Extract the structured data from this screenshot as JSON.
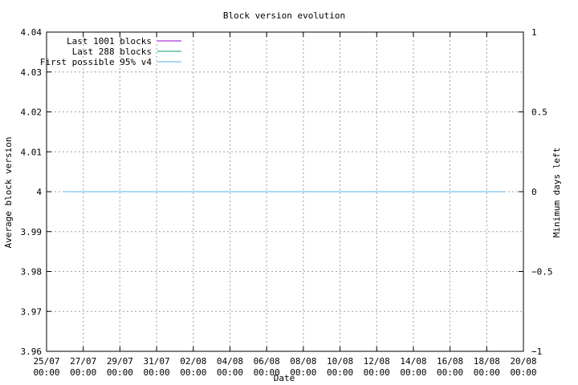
{
  "chart_data": {
    "type": "line",
    "title": "Block version evolution",
    "xlabel": "Date",
    "ylabel": "Average block version",
    "y2label": "Minimum days left",
    "xlim": [
      "25/07 00:00",
      "20/08 00:00"
    ],
    "ylim": [
      3.96,
      4.04
    ],
    "y2lim": [
      -1,
      1
    ],
    "grid": true,
    "legend": "top-left",
    "x_ticks": [
      {
        "day": 0,
        "line1": "25/07",
        "line2": "00:00"
      },
      {
        "day": 2,
        "line1": "27/07",
        "line2": "00:00"
      },
      {
        "day": 4,
        "line1": "29/07",
        "line2": "00:00"
      },
      {
        "day": 6,
        "line1": "31/07",
        "line2": "00:00"
      },
      {
        "day": 8,
        "line1": "02/08",
        "line2": "00:00"
      },
      {
        "day": 10,
        "line1": "04/08",
        "line2": "00:00"
      },
      {
        "day": 12,
        "line1": "06/08",
        "line2": "00:00"
      },
      {
        "day": 14,
        "line1": "08/08",
        "line2": "00:00"
      },
      {
        "day": 16,
        "line1": "10/08",
        "line2": "00:00"
      },
      {
        "day": 18,
        "line1": "12/08",
        "line2": "00:00"
      },
      {
        "day": 20,
        "line1": "14/08",
        "line2": "00:00"
      },
      {
        "day": 22,
        "line1": "16/08",
        "line2": "00:00"
      },
      {
        "day": 24,
        "line1": "18/08",
        "line2": "00:00"
      },
      {
        "day": 26,
        "line1": "20/08",
        "line2": "00:00"
      }
    ],
    "y_ticks": [
      {
        "value": 4.04,
        "label": "4.04"
      },
      {
        "value": 4.03,
        "label": "4.03"
      },
      {
        "value": 4.02,
        "label": "4.02"
      },
      {
        "value": 4.01,
        "label": "4.01"
      },
      {
        "value": 4.0,
        "label": "4"
      },
      {
        "value": 3.99,
        "label": "3.99"
      },
      {
        "value": 3.98,
        "label": "3.98"
      },
      {
        "value": 3.97,
        "label": "3.97"
      },
      {
        "value": 3.96,
        "label": "3.96"
      }
    ],
    "y2_ticks": [
      {
        "value": 1,
        "label": "1"
      },
      {
        "value": 0.5,
        "label": "0.5"
      },
      {
        "value": 0,
        "label": "0"
      },
      {
        "value": -0.5,
        "label": "-0.5"
      },
      {
        "value": -1,
        "label": "-1"
      }
    ],
    "series": [
      {
        "name": "Last 1001 blocks",
        "color": "#9400d3",
        "axis": "y",
        "x": [
          "26/07 00:00",
          "19/08 00:00"
        ],
        "values": [
          4,
          4
        ]
      },
      {
        "name": "Last 288 blocks",
        "color": "#009e73",
        "axis": "y",
        "x": [
          "26/07 00:00",
          "19/08 00:00"
        ],
        "values": [
          4,
          4
        ]
      },
      {
        "name": "First possible 95% v4",
        "color": "#56b4e9",
        "axis": "y2",
        "x": [
          "26/07 00:00",
          "19/08 00:00"
        ],
        "values": [
          0,
          0
        ]
      }
    ]
  }
}
